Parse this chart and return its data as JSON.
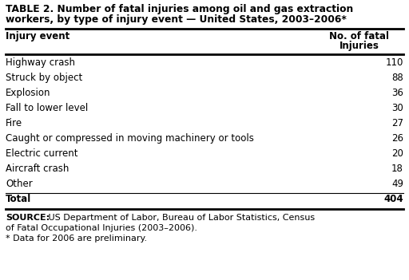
{
  "title_line1": "TABLE 2. Number of fatal injuries among oil and gas extraction",
  "title_line2": "workers, by type of injury event — United States, 2003–2006*",
  "col1_header": "Injury event",
  "col2_header_line1": "No. of fatal",
  "col2_header_line2": "Injuries",
  "rows": [
    [
      "Highway crash",
      "110"
    ],
    [
      "Struck by object",
      "88"
    ],
    [
      "Explosion",
      "36"
    ],
    [
      "Fall to lower level",
      "30"
    ],
    [
      "Fire",
      "27"
    ],
    [
      "Caught or compressed in moving machinery or tools",
      "26"
    ],
    [
      "Electric current",
      "20"
    ],
    [
      "Aircraft crash",
      "18"
    ],
    [
      "Other",
      "49"
    ]
  ],
  "total_label": "Total",
  "total_value": "404",
  "source_bold": "SOURCE:",
  "source_rest": " US Department of Labor, Bureau of Labor Statistics, Census",
  "source_line2": "of Fatal Occupational Injuries (2003–2006).",
  "footnote": "* Data for 2006 are preliminary.",
  "bg_color": "#ffffff",
  "text_color": "#000000",
  "title_fontsize": 8.8,
  "body_fontsize": 8.5,
  "source_fontsize": 8.0
}
